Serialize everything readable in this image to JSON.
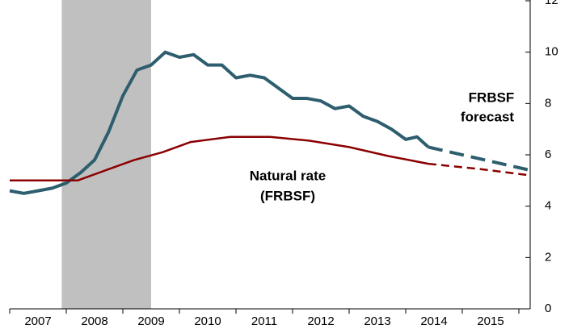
{
  "chart_data": {
    "type": "line",
    "annotations": [
      {
        "text": "FRBSF",
        "color": "#2e5e6e"
      },
      {
        "text": "forecast",
        "color": "#2e5e6e"
      },
      {
        "text": "Natural rate",
        "color": "#8b0000"
      },
      {
        "text": "(FRBSF)",
        "color": "#8b0000"
      }
    ],
    "recession": {
      "start": 2007.92,
      "end": 2009.5,
      "color": "#c0c0c0"
    },
    "series": [
      {
        "color": "#2e5e6e",
        "dashed": false,
        "width": 4,
        "x": [
          2007.0,
          2007.25,
          2007.5,
          2007.75,
          2008.0,
          2008.25,
          2008.5,
          2008.75,
          2009.0,
          2009.25,
          2009.5,
          2009.75,
          2010.0,
          2010.25,
          2010.5,
          2010.75,
          2011.0,
          2011.25,
          2011.5,
          2011.75,
          2012.0,
          2012.25,
          2012.5,
          2012.75,
          2013.0,
          2013.25,
          2013.5,
          2013.75,
          2014.0,
          2014.2,
          2014.4
        ],
        "values": [
          4.6,
          4.5,
          4.6,
          4.7,
          4.9,
          5.3,
          5.8,
          6.9,
          8.3,
          9.3,
          9.5,
          10.0,
          9.8,
          9.9,
          9.5,
          9.5,
          9.0,
          9.1,
          9.0,
          8.6,
          8.2,
          8.2,
          8.1,
          7.8,
          7.9,
          7.5,
          7.3,
          7.0,
          6.6,
          6.7,
          6.3
        ]
      },
      {
        "color": "#2e5e6e",
        "dashed": true,
        "width": 4,
        "x": [
          2014.4,
          2015.2,
          2016.2
        ],
        "values": [
          6.3,
          5.9,
          5.4
        ]
      },
      {
        "color": "#8b0000",
        "dashed": false,
        "width": 2.5,
        "x": [
          2007.0,
          2008.2,
          2008.7,
          2009.2,
          2009.7,
          2010.2,
          2010.9,
          2011.6,
          2012.3,
          2013.0,
          2013.7,
          2014.4
        ],
        "values": [
          5.0,
          5.0,
          5.4,
          5.8,
          6.1,
          6.5,
          6.7,
          6.7,
          6.55,
          6.3,
          5.95,
          5.65
        ]
      },
      {
        "color": "#8b0000",
        "dashed": true,
        "width": 2.5,
        "x": [
          2014.4,
          2015.3,
          2016.2
        ],
        "values": [
          5.65,
          5.45,
          5.2
        ]
      }
    ],
    "xlim": [
      2007.0,
      2016.2
    ],
    "xticks": [
      2007,
      2008,
      2009,
      2010,
      2011,
      2012,
      2013,
      2014,
      2015,
      2016
    ],
    "xtick_labels": [
      "2007",
      "2008",
      "2009",
      "2010",
      "2011",
      "2012",
      "2013",
      "2014",
      "2015"
    ],
    "ylim": [
      0,
      12
    ],
    "yticks": [
      0,
      2,
      4,
      6,
      8,
      10,
      12
    ]
  }
}
